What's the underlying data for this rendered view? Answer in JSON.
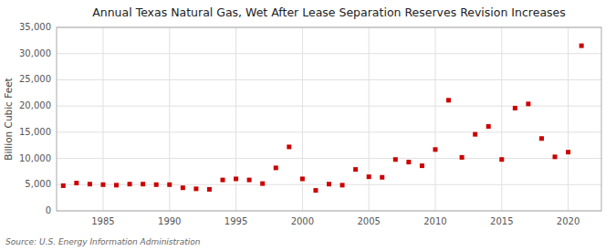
{
  "chart_data": {
    "type": "scatter",
    "title": "Annual Texas Natural Gas, Wet After Lease Separation Reserves Revision Increases",
    "ylabel": "Billion Cubic Feet",
    "source": "Source: U.S. Energy Information Administration",
    "x": [
      1982,
      1983,
      1984,
      1985,
      1986,
      1987,
      1988,
      1989,
      1990,
      1991,
      1992,
      1993,
      1994,
      1995,
      1996,
      1997,
      1998,
      1999,
      2000,
      2001,
      2002,
      2003,
      2004,
      2005,
      2006,
      2007,
      2008,
      2009,
      2010,
      2011,
      2012,
      2013,
      2014,
      2015,
      2016,
      2017,
      2018,
      2019,
      2020,
      2021
    ],
    "values": [
      4800,
      5300,
      5100,
      5000,
      4900,
      5100,
      5100,
      5000,
      5000,
      4400,
      4200,
      4100,
      5900,
      6100,
      5900,
      5200,
      8200,
      12200,
      6100,
      3900,
      5100,
      4900,
      7900,
      6500,
      6400,
      9800,
      9300,
      8600,
      11700,
      21100,
      10200,
      14600,
      16100,
      9800,
      19600,
      20400,
      13800,
      10300,
      11200,
      31500
    ],
    "color": "#cc0000",
    "marker": "square",
    "xlim": [
      1981.5,
      2022.5
    ],
    "xticks": [
      1985,
      1990,
      1995,
      2000,
      2005,
      2010,
      2015,
      2020
    ],
    "ylim": [
      0,
      35000
    ],
    "yticks": [
      0,
      {
        "value": 5000,
        "label": "5,000"
      },
      {
        "value": 10000,
        "label": "10,000"
      },
      {
        "value": 15000,
        "label": "15,000"
      },
      {
        "value": 20000,
        "label": "20,000"
      },
      {
        "value": 25000,
        "label": "25,000"
      },
      {
        "value": 30000,
        "label": "30,000"
      },
      {
        "value": 35000,
        "label": "35,000"
      }
    ],
    "grid": true
  }
}
